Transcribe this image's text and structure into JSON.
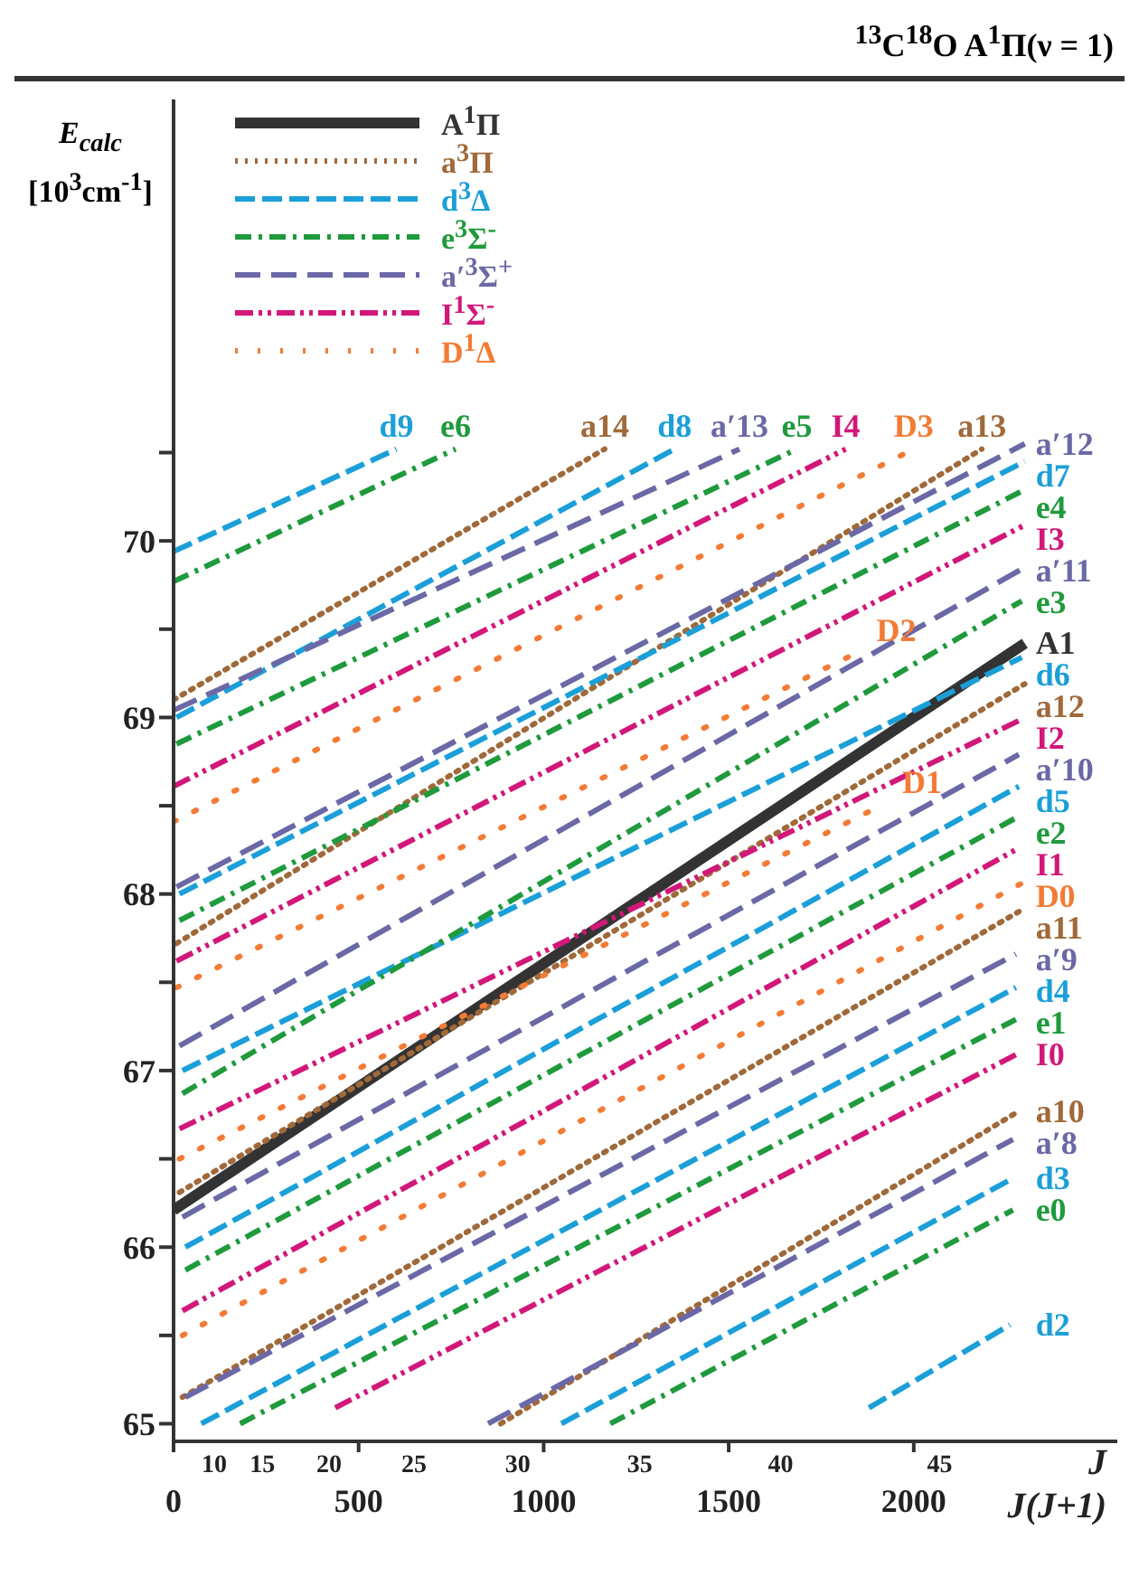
{
  "chart_data": {
    "type": "line",
    "title": "$^{13}$C$^{18}$O A$^{1}$Π(ν = 1)",
    "ylabel": "E$_{calc}$ [10$^{3}$cm$^{-1}$]",
    "xlabel": "J(J+1)",
    "xlim": [
      0,
      2550
    ],
    "xticks": [
      0,
      500,
      1000,
      1500,
      2000
    ],
    "ylim": [
      64.9,
      72.5
    ],
    "yticks": [
      65,
      {
        "value": 65.5,
        "label": null
      },
      66,
      {
        "value": 66.5,
        "label": null
      },
      67,
      {
        "value": 67.5,
        "label": null
      },
      68,
      {
        "value": 68.5,
        "label": null
      },
      69,
      {
        "value": 69.5,
        "label": null
      },
      70,
      {
        "value": 70.5,
        "label": null
      }
    ],
    "legend": "top left",
    "series": [
      {
        "name": "A$^{1}$Π",
        "color": "#333333",
        "line_style": "solid",
        "x": [
          0,
          2300
        ],
        "values": [
          66.21,
          69.42
        ]
      },
      {
        "name": "a$^{3}$Π",
        "color": "#a0693a",
        "line_style": "dotted",
        "x": [
          0,
          1165,
          null,
          8,
          2184,
          null,
          16,
          2300,
          null,
          24,
          2292,
          null,
          884,
          2284
        ],
        "values": [
          69.1,
          70.52,
          null,
          67.72,
          70.52,
          null,
          66.31,
          69.19,
          null,
          65.15,
          67.91,
          null,
          65.0,
          66.77
        ]
      },
      {
        "name": "d$^{3}$Δ",
        "color": "#1b9fd8",
        "line_style": "dashed",
        "x": [
          0,
          602,
          null,
          8,
          1354,
          null,
          16,
          2300,
          null,
          24,
          2292,
          null,
          32,
          2284,
          null,
          75,
          2276,
          null,
          1048,
          2268,
          null,
          1879,
          2260
        ],
        "values": [
          69.94,
          70.52,
          null,
          69.0,
          70.52,
          null,
          68.0,
          70.45,
          null,
          67.0,
          69.34,
          null,
          66.0,
          68.61,
          null,
          65.0,
          67.47,
          null,
          65.0,
          66.39,
          null,
          65.09,
          65.56
        ]
      },
      {
        "name": "e$^{3}$Σ$^{-}$",
        "color": "#1f9a3c",
        "line_style": "dashed",
        "x": [
          0,
          762,
          null,
          8,
          1684,
          null,
          16,
          2300,
          null,
          24,
          2292,
          null,
          32,
          2284,
          null,
          180,
          2276,
          null,
          1180,
          2268
        ],
        "values": [
          69.77,
          70.52,
          null,
          68.85,
          70.52,
          null,
          67.85,
          70.29,
          null,
          66.87,
          69.66,
          null,
          65.87,
          68.44,
          null,
          65.0,
          67.29,
          null,
          65.0,
          66.21
        ]
      },
      {
        "name": "a′$^{3}$Σ$^{+}$",
        "color": "#6b68a6",
        "line_style": "dashed",
        "x": [
          0,
          1529,
          null,
          8,
          2300,
          null,
          16,
          2292,
          null,
          24,
          2284,
          null,
          32,
          2276,
          null,
          850,
          2268
        ],
        "values": [
          69.04,
          70.52,
          null,
          68.04,
          70.55,
          null,
          67.14,
          69.84,
          null,
          66.17,
          68.79,
          null,
          65.15,
          67.66,
          null,
          65.0,
          66.61
        ]
      },
      {
        "name": "I$^{1}$Σ$^{-}$",
        "color": "#d2177a",
        "line_style": "dashed",
        "x": [
          0,
          1816,
          null,
          8,
          2300,
          null,
          16,
          2292,
          null,
          24,
          2284,
          null,
          437,
          2276
        ],
        "values": [
          68.61,
          70.52,
          null,
          67.62,
          70.09,
          null,
          66.67,
          68.99,
          null,
          65.64,
          68.26,
          null,
          65.09,
          67.09
        ]
      },
      {
        "name": "D$^{1}$Δ",
        "color": "#f47b35",
        "line_style": "dotted",
        "x": [
          0,
          2000,
          null,
          8,
          1850,
          null,
          16,
          1920,
          null,
          24,
          2300
        ],
        "values": [
          68.41,
          70.52,
          null,
          67.47,
          69.37,
          null,
          66.5,
          68.51,
          null,
          65.5,
          68.07
        ]
      }
    ],
    "annotations": [
      "10",
      "15",
      "20",
      "25",
      "30",
      "35",
      "40",
      "45",
      "J",
      {
        "text": "d9",
        "x": 602,
        "y": 70.52
      },
      {
        "text": "e6",
        "x": 762,
        "y": 70.52
      },
      {
        "text": "a14",
        "x": 1165,
        "y": 70.52
      },
      {
        "text": "d8",
        "x": 1354,
        "y": 70.52
      },
      {
        "text": "a′13",
        "x": 1529,
        "y": 70.52
      },
      {
        "text": "e5",
        "x": 1684,
        "y": 70.52
      },
      {
        "text": "I4",
        "x": 1816,
        "y": 70.52
      },
      {
        "text": "D3",
        "x": 2000,
        "y": 70.52
      },
      {
        "text": "a13",
        "x": 2184,
        "y": 70.52
      },
      {
        "text": "a′12",
        "x": 2300,
        "y": 70.55
      },
      {
        "text": "d7",
        "x": 2300,
        "y": 70.45
      },
      {
        "text": "e4",
        "x": 2300,
        "y": 70.29
      },
      {
        "text": "I3",
        "x": 2300,
        "y": 70.09
      },
      {
        "text": "a′11",
        "x": 2292,
        "y": 69.84
      },
      {
        "text": "e3",
        "x": 2292,
        "y": 69.66
      },
      {
        "text": "A1",
        "x": 2300,
        "y": 69.42
      },
      {
        "text": "d6",
        "x": 2292,
        "y": 69.34
      },
      {
        "text": "a12",
        "x": 2300,
        "y": 69.19
      },
      {
        "text": "I2",
        "x": 2292,
        "y": 68.99
      },
      {
        "text": "a′10",
        "x": 2284,
        "y": 68.79
      },
      {
        "text": "d5",
        "x": 2284,
        "y": 68.61
      },
      {
        "text": "e2",
        "x": 2284,
        "y": 68.44
      },
      {
        "text": "I1",
        "x": 2284,
        "y": 68.26
      },
      {
        "text": "D0",
        "x": 2300,
        "y": 68.07
      },
      {
        "text": "a11",
        "x": 2292,
        "y": 67.91
      },
      {
        "text": "a′9",
        "x": 2276,
        "y": 67.66
      },
      {
        "text": "d4",
        "x": 2276,
        "y": 67.47
      },
      {
        "text": "e1",
        "x": 2276,
        "y": 67.29
      },
      {
        "text": "I0",
        "x": 2276,
        "y": 67.09
      },
      {
        "text": "a10",
        "x": 2284,
        "y": 66.77
      },
      {
        "text": "a′8",
        "x": 2268,
        "y": 66.61
      },
      {
        "text": "d3",
        "x": 2268,
        "y": 66.39
      },
      {
        "text": "e0",
        "x": 2268,
        "y": 66.21
      },
      {
        "text": "d2",
        "x": 2260,
        "y": 65.56
      },
      {
        "text": "D2",
        "x": 1850,
        "y": 69.37
      },
      {
        "text": "D1",
        "x": 1920,
        "y": 68.51
      }
    ]
  }
}
